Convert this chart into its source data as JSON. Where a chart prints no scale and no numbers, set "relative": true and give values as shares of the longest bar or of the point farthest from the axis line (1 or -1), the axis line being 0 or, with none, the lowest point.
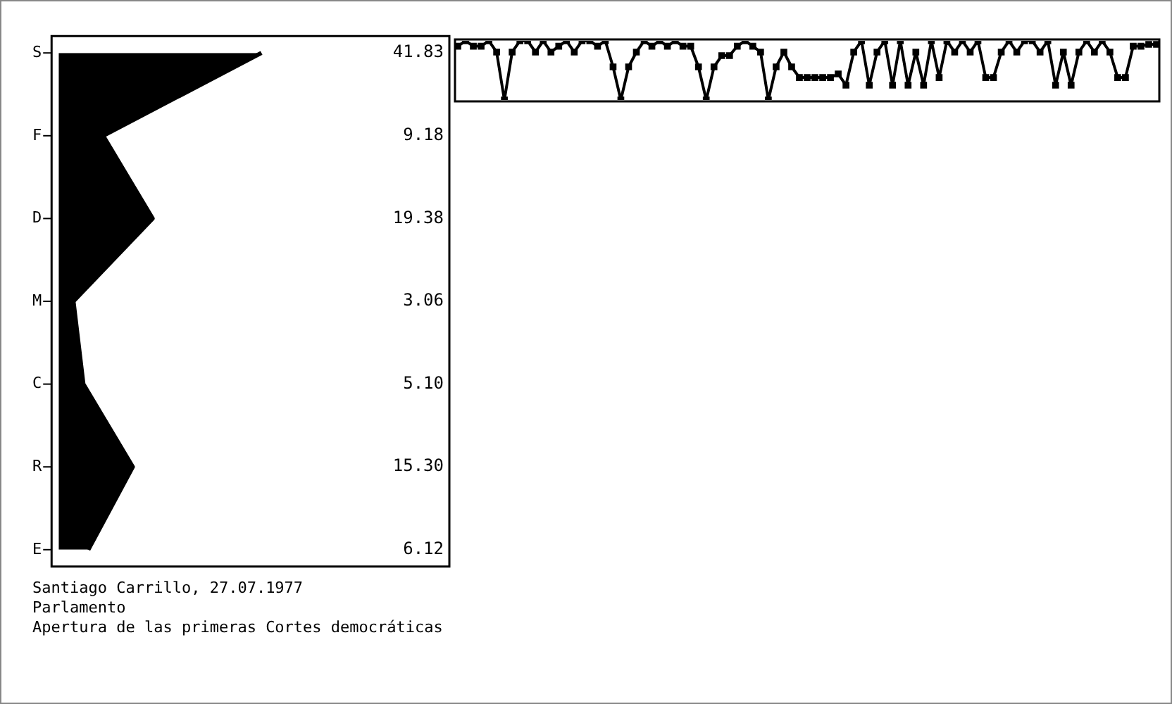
{
  "chart_data": [
    {
      "type": "area",
      "orientation": "horizontal",
      "categories": [
        "S",
        "F",
        "D",
        "M",
        "C",
        "R",
        "E"
      ],
      "values": [
        41.83,
        9.18,
        19.38,
        3.06,
        5.1,
        15.3,
        6.12
      ],
      "value_labels": [
        "41.83",
        "9.18",
        "19.38",
        "3.06",
        "5.10",
        "15.30",
        "6.12"
      ],
      "color": "#000000",
      "tick_labels": "y",
      "grid": false,
      "legend": false,
      "marker": "none",
      "annotations": [
        "Santiago Carrillo, 27.07.1977",
        "Parlamento",
        "Apertura de las primeras Cortes democráticas"
      ]
    },
    {
      "type": "line",
      "relative": true,
      "color": "#000000",
      "marker": "square",
      "legend": false,
      "grid": false,
      "tick_labels": false,
      "categories": [
        null,
        null,
        null,
        null,
        null,
        null,
        null,
        null,
        null,
        null,
        null,
        null,
        null,
        null,
        null,
        null,
        null,
        null,
        null,
        null,
        null,
        null,
        null,
        null,
        null,
        null,
        null,
        null,
        null,
        null,
        null,
        null,
        null,
        null,
        null,
        null,
        null,
        null,
        null,
        null,
        null,
        null,
        null,
        null,
        null,
        null,
        null,
        null,
        null,
        null,
        null,
        null,
        null,
        null,
        null,
        null,
        null,
        null,
        null,
        null,
        null,
        null,
        null,
        null,
        null,
        null,
        null,
        null,
        null,
        null,
        null,
        null,
        null,
        null,
        null,
        null,
        null,
        null,
        null,
        null,
        null,
        null,
        null,
        null,
        null,
        null,
        null,
        null,
        null,
        null,
        null
      ],
      "values": [
        0.91,
        1,
        0.91,
        0.91,
        1,
        0.81,
        0,
        0.81,
        1,
        1,
        0.81,
        1,
        0.81,
        0.91,
        1,
        0.81,
        1,
        1,
        0.91,
        1,
        0.56,
        0,
        0.56,
        0.81,
        1,
        0.91,
        1,
        0.91,
        1,
        0.91,
        0.91,
        0.56,
        0,
        0.56,
        0.75,
        0.75,
        0.91,
        1,
        0.91,
        0.81,
        0,
        0.56,
        0.81,
        0.56,
        0.38,
        0.38,
        0.38,
        0.38,
        0.38,
        0.44,
        0.25,
        0.81,
        1,
        0.25,
        0.81,
        1,
        0.25,
        1,
        0.25,
        0.81,
        0.25,
        1,
        0.38,
        1,
        0.81,
        1,
        0.81,
        1,
        0.38,
        0.38,
        0.81,
        1,
        0.81,
        1,
        1,
        0.81,
        1,
        0.25,
        0.81,
        0.25,
        0.81,
        1,
        0.81,
        1,
        0.81,
        0.38,
        0.38,
        0.91,
        0.91,
        0.94,
        0.94
      ]
    }
  ]
}
